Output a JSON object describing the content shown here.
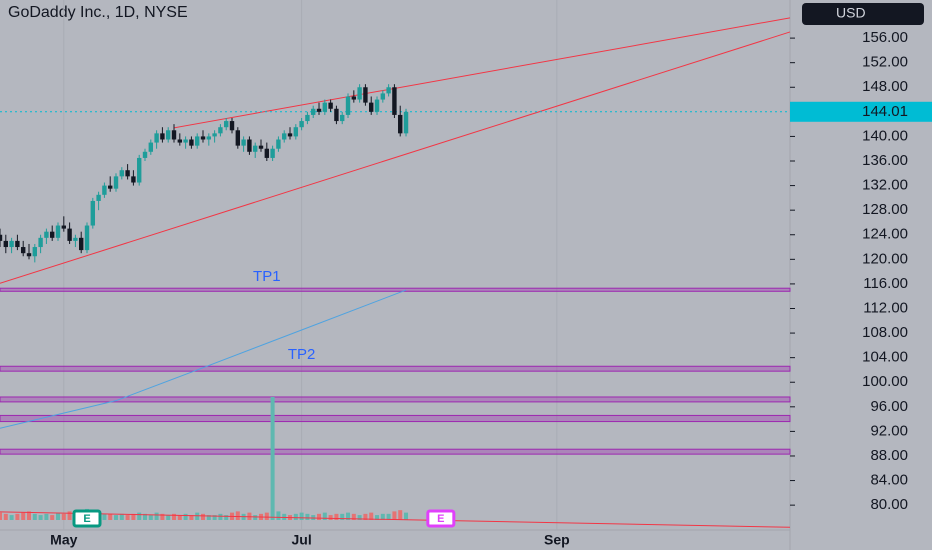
{
  "chart_data": {
    "type": "candlestick",
    "title": "GoDaddy Inc., 1D, NYSE",
    "currency": "USD",
    "x": [
      0,
      1,
      2,
      3,
      4,
      5,
      6,
      7,
      8,
      9,
      10,
      11,
      12,
      13,
      14,
      15,
      16,
      17,
      18,
      19,
      20,
      21,
      22,
      23,
      24,
      25,
      26,
      27,
      28,
      29,
      30,
      31,
      32,
      33,
      34,
      35,
      36,
      37,
      38,
      39,
      40,
      41,
      42,
      43,
      44,
      45,
      46,
      47,
      48,
      49,
      50,
      51,
      52,
      53,
      54,
      55,
      56,
      57,
      58,
      59,
      60,
      61,
      62,
      63,
      64,
      65,
      66,
      67,
      68,
      69,
      70
    ],
    "candles": [
      [
        124,
        125,
        122,
        123
      ],
      [
        123,
        124,
        121,
        122
      ],
      [
        122,
        123.5,
        121,
        123
      ],
      [
        123,
        124,
        121.5,
        122
      ],
      [
        122,
        123,
        120.5,
        121
      ],
      [
        121,
        122.5,
        120,
        120.5
      ],
      [
        120.5,
        122.5,
        119.5,
        122
      ],
      [
        122,
        124,
        121,
        123.5
      ],
      [
        123.5,
        125,
        122.5,
        124.5
      ],
      [
        124.5,
        125.5,
        123,
        123.5
      ],
      [
        123.5,
        126,
        123,
        125.5
      ],
      [
        125.5,
        127,
        124.5,
        125
      ],
      [
        125,
        126,
        122.5,
        123
      ],
      [
        123,
        124,
        122,
        123.5
      ],
      [
        123.5,
        124.5,
        121,
        121.5
      ],
      [
        121.5,
        126,
        121,
        125.5
      ],
      [
        125.5,
        130,
        125,
        129.5
      ],
      [
        129.5,
        131,
        128,
        130.5
      ],
      [
        130.5,
        132.5,
        130,
        132
      ],
      [
        132,
        133.5,
        131,
        131.5
      ],
      [
        131.5,
        134,
        131,
        133.5
      ],
      [
        133.5,
        135,
        133,
        134.5
      ],
      [
        134.5,
        135.5,
        133,
        133.5
      ],
      [
        133.5,
        134.5,
        132,
        132.5
      ],
      [
        132.5,
        137,
        132,
        136.5
      ],
      [
        136.5,
        138,
        136,
        137.5
      ],
      [
        137.5,
        139.5,
        137,
        139
      ],
      [
        139,
        141,
        138,
        140.5
      ],
      [
        140.5,
        141.5,
        139,
        139.5
      ],
      [
        139.5,
        141.5,
        139,
        141
      ],
      [
        141,
        142,
        139,
        139.5
      ],
      [
        139.5,
        140.5,
        138.5,
        139
      ],
      [
        139,
        140,
        138,
        139.5
      ],
      [
        139.5,
        140,
        138,
        138.5
      ],
      [
        138.5,
        140.5,
        138,
        140
      ],
      [
        140,
        141,
        139,
        139.5
      ],
      [
        139.5,
        140.5,
        138.5,
        140
      ],
      [
        140,
        141,
        139,
        140.5
      ],
      [
        140.5,
        142,
        140,
        141.5
      ],
      [
        141.5,
        143,
        141,
        142.5
      ],
      [
        142.5,
        143,
        140.5,
        141
      ],
      [
        141,
        141.5,
        138,
        138.5
      ],
      [
        138.5,
        140,
        137.5,
        139.5
      ],
      [
        139.5,
        140,
        137,
        137.5
      ],
      [
        137.5,
        139,
        136.5,
        138.5
      ],
      [
        138.5,
        139.5,
        137.5,
        138
      ],
      [
        138,
        139,
        136,
        136.5
      ],
      [
        136.5,
        138.5,
        136,
        138
      ],
      [
        138,
        140,
        137.5,
        139.5
      ],
      [
        139.5,
        141,
        139,
        140.5
      ],
      [
        140.5,
        141.5,
        139.5,
        140
      ],
      [
        140,
        142,
        139.5,
        141.5
      ],
      [
        141.5,
        143,
        141,
        142.5
      ],
      [
        142.5,
        144,
        142,
        143.5
      ],
      [
        143.5,
        145,
        143,
        144.5
      ],
      [
        144.5,
        145.5,
        143.5,
        144
      ],
      [
        144,
        146,
        143.5,
        145.5
      ],
      [
        145.5,
        146,
        144,
        144.5
      ],
      [
        144.5,
        145,
        142,
        142.5
      ],
      [
        142.5,
        144,
        142,
        143.5
      ],
      [
        143.5,
        147,
        143,
        146.5
      ],
      [
        146.5,
        147.5,
        145.5,
        146
      ],
      [
        146,
        148.5,
        145.5,
        148
      ],
      [
        148,
        148.5,
        145,
        145.5
      ],
      [
        145.5,
        146.5,
        143.5,
        144
      ],
      [
        144,
        146.5,
        143.5,
        146
      ],
      [
        146,
        147.5,
        145.5,
        147
      ],
      [
        147,
        148.5,
        146.5,
        148
      ],
      [
        148,
        148.5,
        143,
        143.5
      ],
      [
        143.5,
        145,
        140,
        140.5
      ],
      [
        140.5,
        144.5,
        140,
        144
      ]
    ],
    "up_color": "#1f9d9a",
    "down_color": "#131722",
    "volume": [
      6,
      5,
      4,
      5,
      6,
      7,
      5,
      4,
      5,
      4,
      6,
      5,
      7,
      5,
      6,
      9,
      8,
      6,
      5,
      5,
      4,
      5,
      4,
      5,
      6,
      5,
      4,
      6,
      5,
      4,
      5,
      4,
      5,
      4,
      6,
      5,
      4,
      4,
      5,
      4,
      6,
      7,
      5,
      6,
      4,
      5,
      6,
      100,
      7,
      5,
      4,
      5,
      6,
      5,
      4,
      5,
      6,
      4,
      5,
      5,
      6,
      5,
      4,
      5,
      6,
      4,
      5,
      5,
      7,
      8,
      6
    ],
    "volume_up_color": "#5fb8b0",
    "volume_down_color": "#e57373",
    "ylim": [
      72.7,
      162.2
    ],
    "yticks": [
      {
        "value": 80,
        "label": "80.00"
      },
      {
        "value": 84,
        "label": "84.00"
      },
      {
        "value": 88,
        "label": "88.00"
      },
      {
        "value": 92,
        "label": "92.00"
      },
      {
        "value": 96,
        "label": "96.00"
      },
      {
        "value": 100,
        "label": "100.00"
      },
      {
        "value": 104,
        "label": "104.00"
      },
      {
        "value": 108,
        "label": "108.00"
      },
      {
        "value": 112,
        "label": "112.00"
      },
      {
        "value": 116,
        "label": "116.00"
      },
      {
        "value": 120,
        "label": "120.00"
      },
      {
        "value": 124,
        "label": "124.00"
      },
      {
        "value": 128,
        "label": "128.00"
      },
      {
        "value": 132,
        "label": "132.00"
      },
      {
        "value": 136,
        "label": "136.00"
      },
      {
        "value": 140,
        "label": "140.00"
      },
      {
        "value": 148,
        "label": "148.00"
      },
      {
        "value": 152,
        "label": "152.00"
      },
      {
        "value": 156,
        "label": "156.00"
      }
    ],
    "xlim": [
      0,
      136.2
    ],
    "xticks": [
      {
        "value": 11,
        "label": "May"
      },
      {
        "value": 52,
        "label": "Jul"
      },
      {
        "value": 96,
        "label": "Sep"
      }
    ],
    "last_price": 144.01,
    "last_price_color": "#00bcd4",
    "ma": {
      "x": [
        0,
        20,
        34,
        52,
        70
      ],
      "values": [
        92.5,
        97,
        102,
        108.5,
        115
      ],
      "color": "#4fa3e0"
    },
    "trendlines": [
      {
        "x": [
          30,
          136.2
        ],
        "y": [
          141.4,
          159.3
        ],
        "color": "#f23645"
      },
      {
        "x": [
          0,
          136.2
        ],
        "y": [
          116.1,
          157
        ],
        "color": "#f23645"
      },
      {
        "x": [
          0,
          136.2
        ],
        "y": [
          78.9,
          76.4
        ],
        "color": "#f23645"
      }
    ],
    "zones": [
      {
        "label": "TP1",
        "label_x": 46,
        "ranges": [
          [
            115.3,
            114.8
          ]
        ]
      },
      {
        "label": "TP2",
        "label_x": 52,
        "ranges": [
          [
            102.6,
            101.8
          ],
          [
            97.6,
            96.8
          ],
          [
            94.6,
            93.6
          ],
          [
            89.1,
            88.3
          ]
        ]
      }
    ],
    "zone_color": "#9c27b0",
    "zone_label_color": "#2962ff",
    "events": [
      {
        "x": 15,
        "label": "E",
        "color": "#089981"
      },
      {
        "x": 76,
        "label": "E",
        "color": "#e040fb"
      }
    ]
  }
}
